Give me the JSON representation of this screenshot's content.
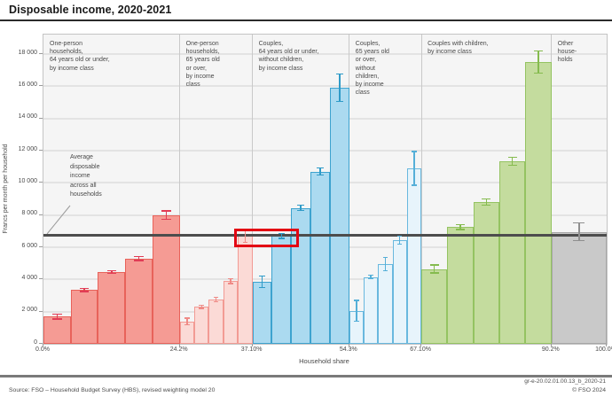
{
  "title": "Disposable income, 2020-2021",
  "ylabel": "Francs per month per household",
  "xlabel": "Household share",
  "average_annotation": "Average\ndisposable\nincome\nacross all\nhouseholds",
  "footer": {
    "source": "Source: FSO – Household Budget Survey (HBS), revised weighting model 20",
    "reference": "gr-e-20.02.01.00.13_b_2020-21",
    "copyright": "© FSO 2024"
  },
  "colors": {
    "average_line": "#4d4d4d",
    "highlight": "#e30613",
    "plot_bg": "#f5f5f5",
    "gridline": "#e3e3e3"
  },
  "chart_data": {
    "type": "bar",
    "title": "Disposable income, 2020-2021",
    "xlabel": "Household share",
    "ylabel": "Francs per month per household",
    "ylim": [
      0,
      19200
    ],
    "yticks": [
      0,
      2000,
      4000,
      6000,
      8000,
      10000,
      12000,
      14000,
      16000,
      18000
    ],
    "xticks": [
      {
        "label": "0.0%",
        "pct": 0
      },
      {
        "label": "24.2%",
        "pct": 24.2
      },
      {
        "label": "37.10%",
        "pct": 37.1
      },
      {
        "label": "54.3%",
        "pct": 54.3
      },
      {
        "label": "67.10%",
        "pct": 67.1
      },
      {
        "label": "90.2%",
        "pct": 90.2
      },
      {
        "label": "100.0%",
        "pct": 100
      }
    ],
    "average_line_value": 6750,
    "grid": true,
    "note": "Variable-width bar chart; bar widths are household shares, heights are disposable income with 95% confidence error bars",
    "groups": [
      {
        "label": "One-person\nhouseholds,\n64 years old or under,\nby income class",
        "start_pct": 0,
        "end_pct": 24.2,
        "fill": "#f59b94",
        "stroke": "#e8625a",
        "error_color": "#e13c55",
        "bars": [
          {
            "value": 1700,
            "error": 150
          },
          {
            "value": 3350,
            "error": 100
          },
          {
            "value": 4450,
            "error": 80
          },
          {
            "value": 5300,
            "error": 130
          },
          {
            "value": 8000,
            "error": 250
          }
        ]
      },
      {
        "label": "One-person\nhouseholds,\n65 years old\nor over,\nby income\nclass",
        "start_pct": 24.2,
        "end_pct": 37.1,
        "fill": "#fbdad6",
        "stroke": "#f29b94",
        "error_color": "#ef8a86",
        "bars": [
          {
            "value": 1400,
            "error": 200
          },
          {
            "value": 2300,
            "error": 100
          },
          {
            "value": 2750,
            "error": 150
          },
          {
            "value": 3900,
            "error": 150
          },
          {
            "value": 6700,
            "error": 400
          }
        ]
      },
      {
        "label": "Couples,\n64 years old or under,\nwithout children,\nby income class",
        "start_pct": 37.1,
        "end_pct": 54.3,
        "fill": "#abdaf0",
        "stroke": "#3da3cf",
        "error_color": "#2f9bc8",
        "bars": [
          {
            "value": 3850,
            "error": 350
          },
          {
            "value": 6700,
            "error": 150
          },
          {
            "value": 8450,
            "error": 180
          },
          {
            "value": 10700,
            "error": 220
          },
          {
            "value": 15900,
            "error": 850
          }
        ]
      },
      {
        "label": "Couples,\n65 years old\nor over,\nwithout\nchildren,\nby income\nclass",
        "start_pct": 54.3,
        "end_pct": 67.1,
        "fill": "#e7f4fb",
        "stroke": "#69b8de",
        "error_color": "#55afd8",
        "bars": [
          {
            "value": 2050,
            "error": 650
          },
          {
            "value": 4150,
            "error": 120
          },
          {
            "value": 4950,
            "error": 420
          },
          {
            "value": 6450,
            "error": 250
          },
          {
            "value": 10900,
            "error": 1050
          }
        ]
      },
      {
        "label": "Couples with children,\nby income class",
        "start_pct": 67.1,
        "end_pct": 90.2,
        "fill": "#c4dc9e",
        "stroke": "#94c361",
        "error_color": "#85bb4e",
        "bars": [
          {
            "value": 4650,
            "error": 250
          },
          {
            "value": 7250,
            "error": 150
          },
          {
            "value": 8800,
            "error": 200
          },
          {
            "value": 11350,
            "error": 250
          },
          {
            "value": 17500,
            "error": 700
          }
        ]
      },
      {
        "label": "Other\nhouse-\nholds",
        "start_pct": 90.2,
        "end_pct": 100,
        "fill": "#c9c9c9",
        "stroke": "#a6a6a6",
        "error_color": "#8f8f8f",
        "bars": [
          {
            "value": 6950,
            "error": 550
          }
        ]
      }
    ],
    "highlight_rect": {
      "x_start_pct": 33.8,
      "x_end_pct": 45.3,
      "y_min": 6000,
      "y_max": 7150
    }
  }
}
